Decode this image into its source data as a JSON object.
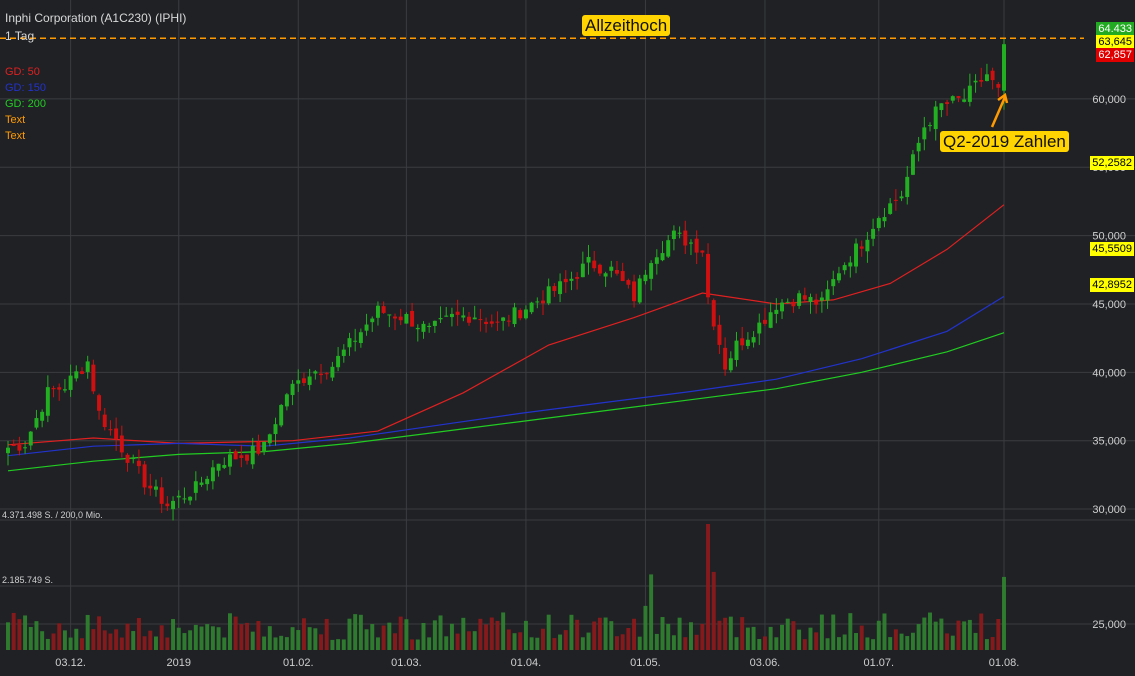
{
  "header": {
    "instrument": "Inphi Corporation (A1C230) (IPHI)",
    "interval": "1 Tag"
  },
  "legend": [
    {
      "label": "GD: 50",
      "color": "#e02020"
    },
    {
      "label": "GD: 150",
      "color": "#2233cc"
    },
    {
      "label": "GD: 200",
      "color": "#22cc22"
    },
    {
      "label": "Text",
      "color": "#ff9a00"
    },
    {
      "label": "Text",
      "color": "#ff9a00"
    }
  ],
  "annotations": {
    "ath": "Allzeithoch",
    "earnings": "Q2-2019 Zahlen"
  },
  "price_tags": [
    {
      "label": "64.433",
      "value": 64.433,
      "bg": "#22aa22",
      "fg": "#ffffff"
    },
    {
      "label": "63,645",
      "value": 63.645,
      "bg": "#ffff00",
      "fg": "#000000"
    },
    {
      "label": "62,857",
      "value": 62.857,
      "bg": "#e00000",
      "fg": "#ffffff"
    },
    {
      "label": "52,2582",
      "value": 52.2582,
      "bg": "#ffff00",
      "fg": "#000000"
    },
    {
      "label": "45,5509",
      "value": 45.5509,
      "bg": "#ffff00",
      "fg": "#000000"
    },
    {
      "label": "42,8952",
      "value": 42.8952,
      "bg": "#ffff00",
      "fg": "#000000"
    }
  ],
  "volume_labels": {
    "top": "4.371.498 S. / 200,0 Mio.",
    "mid": "2.185.749 S."
  },
  "colors": {
    "background": "#1f2125",
    "grid": "#3a3c40",
    "up": "#22b022",
    "down": "#d01010",
    "ath_line": "#ff9a00"
  },
  "chart_data": {
    "type": "candlestick",
    "title": "Inphi Corporation (A1C230) (IPHI)",
    "ylim": [
      29.2,
      66.5
    ],
    "y_ticks": [
      {
        "label": "30,000",
        "value": 30
      },
      {
        "label": "35,000",
        "value": 35
      },
      {
        "label": "40,000",
        "value": 40
      },
      {
        "label": "45,000",
        "value": 45
      },
      {
        "label": "50,000",
        "value": 50
      },
      {
        "label": "55,000",
        "value": 55
      },
      {
        "label": "60,000",
        "value": 60
      }
    ],
    "x_ticks": [
      {
        "label": "03.12.",
        "day": 11
      },
      {
        "label": "2019",
        "day": 30
      },
      {
        "label": "01.02.",
        "day": 51
      },
      {
        "label": "01.03.",
        "day": 70
      },
      {
        "label": "01.04.",
        "day": 91
      },
      {
        "label": "01.05.",
        "day": 112
      },
      {
        "label": "03.06.",
        "day": 133
      },
      {
        "label": "01.07.",
        "day": 153
      },
      {
        "label": "01.08.",
        "day": 175
      }
    ],
    "volume_axis": {
      "label": "25,000"
    },
    "all_time_high": 64.433,
    "anchors": [
      [
        0,
        34.5
      ],
      [
        3,
        34.8
      ],
      [
        7,
        38.5
      ],
      [
        10,
        39.0
      ],
      [
        14,
        40.8
      ],
      [
        16,
        37.0
      ],
      [
        20,
        34.5
      ],
      [
        24,
        32.0
      ],
      [
        28,
        30.3
      ],
      [
        33,
        31.5
      ],
      [
        37,
        33.5
      ],
      [
        42,
        34.0
      ],
      [
        45,
        34.5
      ],
      [
        49,
        38.5
      ],
      [
        53,
        40.0
      ],
      [
        57,
        40.5
      ],
      [
        61,
        42.5
      ],
      [
        65,
        44.5
      ],
      [
        70,
        44.0
      ],
      [
        74,
        43.0
      ],
      [
        78,
        44.0
      ],
      [
        82,
        44.2
      ],
      [
        86,
        43.5
      ],
      [
        90,
        44.5
      ],
      [
        94,
        45.5
      ],
      [
        98,
        46.5
      ],
      [
        102,
        48.0
      ],
      [
        106,
        47.5
      ],
      [
        110,
        45.5
      ],
      [
        113,
        48.5
      ],
      [
        117,
        50.0
      ],
      [
        120,
        49.5
      ],
      [
        122,
        49.0
      ],
      [
        123,
        45.5
      ],
      [
        126,
        40.5
      ],
      [
        128,
        42.0
      ],
      [
        132,
        43.5
      ],
      [
        135,
        45.0
      ],
      [
        139,
        45.5
      ],
      [
        143,
        45.0
      ],
      [
        146,
        47.5
      ],
      [
        150,
        49.5
      ],
      [
        153,
        51.5
      ],
      [
        157,
        53.0
      ],
      [
        161,
        58.0
      ],
      [
        164,
        59.5
      ],
      [
        168,
        60.0
      ],
      [
        172,
        61.8
      ],
      [
        174,
        60.5
      ],
      [
        175,
        63.6
      ]
    ],
    "ma_points": [
      {
        "name": "GD: 50",
        "points": [
          [
            0,
            34.7
          ],
          [
            15,
            35.2
          ],
          [
            30,
            34.8
          ],
          [
            50,
            35.0
          ],
          [
            65,
            35.7
          ],
          [
            80,
            38.5
          ],
          [
            95,
            42.0
          ],
          [
            110,
            44.0
          ],
          [
            122,
            45.8
          ],
          [
            135,
            45.0
          ],
          [
            145,
            45.3
          ],
          [
            155,
            46.5
          ],
          [
            165,
            49.0
          ],
          [
            175,
            52.2582
          ]
        ]
      },
      {
        "name": "GD: 150",
        "points": [
          [
            0,
            33.9
          ],
          [
            15,
            34.6
          ],
          [
            30,
            34.8
          ],
          [
            45,
            34.6
          ],
          [
            60,
            35.2
          ],
          [
            75,
            36.1
          ],
          [
            90,
            37.0
          ],
          [
            105,
            37.8
          ],
          [
            120,
            38.6
          ],
          [
            135,
            39.5
          ],
          [
            150,
            41.0
          ],
          [
            165,
            43.0
          ],
          [
            175,
            45.5509
          ]
        ]
      },
      {
        "name": "GD: 200",
        "points": [
          [
            0,
            32.8
          ],
          [
            15,
            33.5
          ],
          [
            30,
            34.0
          ],
          [
            45,
            34.2
          ],
          [
            60,
            34.8
          ],
          [
            75,
            35.6
          ],
          [
            90,
            36.4
          ],
          [
            105,
            37.2
          ],
          [
            120,
            38.0
          ],
          [
            135,
            38.8
          ],
          [
            150,
            40.0
          ],
          [
            165,
            41.5
          ],
          [
            175,
            42.8952
          ]
        ]
      }
    ],
    "candles": {
      "count": 176,
      "last_open": 60.6,
      "last_close": 64.0,
      "last_high": 64.433,
      "last_low": 59.2
    },
    "volume": {
      "max": 4371498,
      "mid": 2185749
    }
  }
}
